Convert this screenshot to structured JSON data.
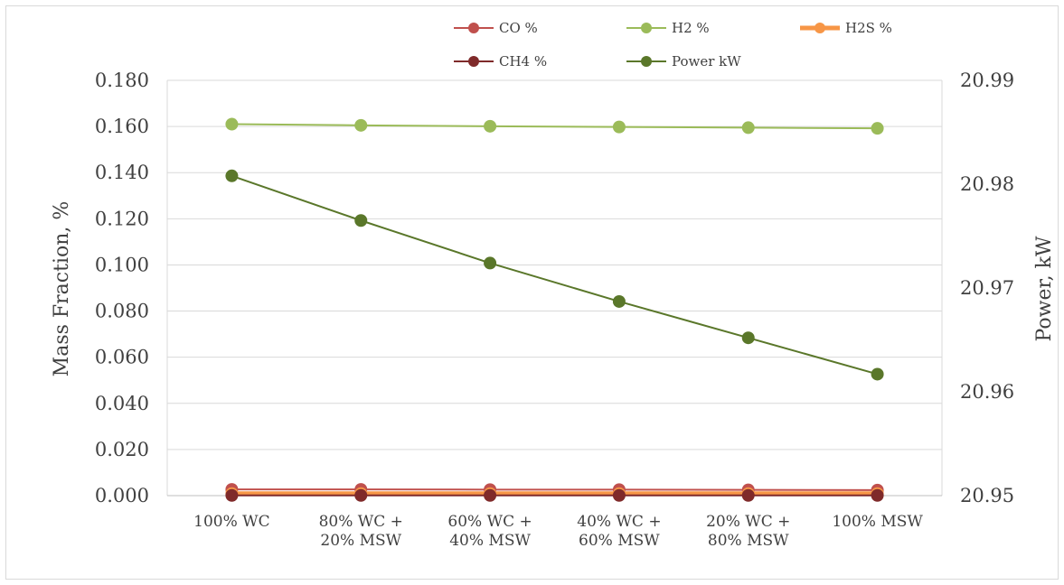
{
  "chart_data": {
    "type": "line",
    "categories": [
      [
        "100% WC"
      ],
      [
        "80% WC +",
        "20% MSW"
      ],
      [
        "60% WC +",
        "40% MSW"
      ],
      [
        "40% WC +",
        "60% MSW"
      ],
      [
        "20% WC +",
        "80% MSW"
      ],
      [
        "100% MSW"
      ]
    ],
    "ylabel": "Mass Fraction, %",
    "y2label": "Power, kW",
    "ylim": [
      0,
      0.18
    ],
    "yticks": [
      "0.000",
      "0.020",
      "0.040",
      "0.060",
      "0.080",
      "0.100",
      "0.120",
      "0.140",
      "0.160",
      "0.180"
    ],
    "y2lim": [
      20.95,
      20.99
    ],
    "y2ticks": [
      "20.95",
      "20.96",
      "20.97",
      "20.98",
      "20.99"
    ],
    "grid": true,
    "legend_position": "top",
    "series": [
      {
        "name": "CO %",
        "axis": "left",
        "color": "#c0504d",
        "width": 2,
        "values": [
          0.0027,
          0.0027,
          0.0026,
          0.0026,
          0.0025,
          0.0024
        ]
      },
      {
        "name": "H2 %",
        "axis": "left",
        "color": "#9bbb59",
        "width": 2,
        "values": [
          0.161,
          0.1605,
          0.1601,
          0.1598,
          0.1595,
          0.1592
        ]
      },
      {
        "name": "H2S %",
        "axis": "left",
        "color": "#f79646",
        "width": 5,
        "values": [
          0.0009,
          0.0009,
          0.0009,
          0.0009,
          0.0009,
          0.0009
        ]
      },
      {
        "name": "CH4 %",
        "axis": "left",
        "color": "#7f2a2a",
        "width": 2,
        "values": [
          0.0001,
          0.0001,
          0.0001,
          0.0001,
          0.0001,
          0.0001
        ]
      },
      {
        "name": "Power kW",
        "axis": "right",
        "color": "#5a772a",
        "width": 2,
        "values": [
          20.9808,
          20.9765,
          20.9724,
          20.9687,
          20.9652,
          20.9617
        ]
      }
    ]
  }
}
